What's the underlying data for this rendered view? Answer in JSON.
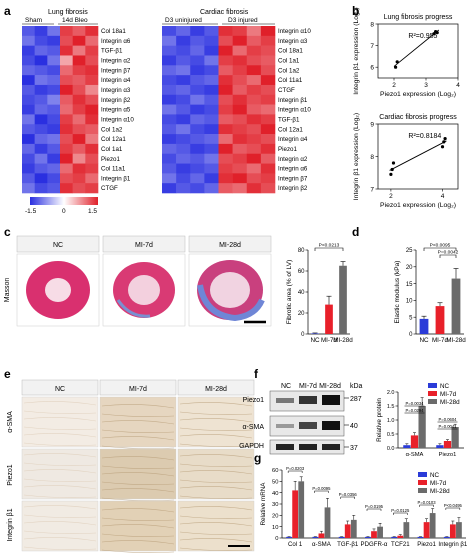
{
  "panel_labels": {
    "a": "a",
    "b": "b",
    "c": "c",
    "d": "d",
    "e": "e",
    "f": "f",
    "g": "g"
  },
  "heatmap_lung": {
    "title": "Lung fibrosis",
    "groups": [
      "Sham",
      "14d Bleo"
    ],
    "genes": [
      "Col 18a1",
      "Integrin α6",
      "TGF-β1",
      "Integrin α2",
      "Integrin β7",
      "Integrin α4",
      "Integrin α3",
      "Integrin β2",
      "Integrin α5",
      "Integrin α10",
      "Col 1a2",
      "Col 12a1",
      "Col 1a1",
      "Piezo1",
      "Col 11a1",
      "Integrin β1",
      "CTGF"
    ],
    "values": [
      [
        -1.2,
        -1.4,
        -1.0,
        1.3,
        1.1,
        1.4
      ],
      [
        -1.0,
        -1.3,
        -1.4,
        1.2,
        1.5,
        1.0
      ],
      [
        -1.4,
        -1.1,
        -1.2,
        1.4,
        0.9,
        1.3
      ],
      [
        -1.3,
        -1.5,
        -1.0,
        0.6,
        1.5,
        1.2
      ],
      [
        -1.1,
        -1.2,
        -1.3,
        1.0,
        1.3,
        1.4
      ],
      [
        -1.5,
        -1.0,
        -1.1,
        1.2,
        1.1,
        1.3
      ],
      [
        -1.2,
        -1.4,
        -1.3,
        1.5,
        1.2,
        0.8
      ],
      [
        -1.3,
        -1.2,
        -0.9,
        1.1,
        1.4,
        1.2
      ],
      [
        -1.4,
        -1.1,
        -1.2,
        1.0,
        1.3,
        1.5
      ],
      [
        -1.0,
        -1.5,
        -1.3,
        1.3,
        1.0,
        1.4
      ],
      [
        -1.2,
        -1.3,
        -1.4,
        1.4,
        1.2,
        1.1
      ],
      [
        -1.5,
        -1.1,
        -1.0,
        1.2,
        1.5,
        0.9
      ],
      [
        -1.1,
        -1.4,
        -1.2,
        1.3,
        1.1,
        1.4
      ],
      [
        -1.3,
        -1.0,
        -1.4,
        1.5,
        0.8,
        1.2
      ],
      [
        -1.4,
        -1.2,
        -1.1,
        1.0,
        1.4,
        1.3
      ],
      [
        -1.2,
        -1.5,
        -1.3,
        1.2,
        1.3,
        1.0
      ],
      [
        -1.0,
        -1.3,
        -1.2,
        1.4,
        1.2,
        1.3
      ]
    ],
    "legend_ticks": [
      "-1.5",
      "0",
      "1.5"
    ]
  },
  "heatmap_cardiac": {
    "title": "Cardiac fibrosis",
    "groups": [
      "D3 uninjured",
      "D3 injured"
    ],
    "genes": [
      "Integrin α10",
      "Integrin α3",
      "Col 18a1",
      "Col 1a1",
      "Col 1a2",
      "Col 11a1",
      "CTGF",
      "Integrin β1",
      "Integrin α10",
      "TGF-β1",
      "Col 12a1",
      "Integrin α4",
      "Piezo1",
      "Integrin α2",
      "Integrin α6",
      "Integrin β7",
      "Integrin β2"
    ],
    "values": [
      [
        -1.3,
        -1.1,
        -1.4,
        -1.2,
        1.4,
        1.3,
        0.9,
        1.5
      ],
      [
        -1.0,
        -1.4,
        -1.2,
        -1.3,
        1.2,
        1.5,
        1.1,
        1.3
      ],
      [
        -1.2,
        -1.3,
        -1.1,
        -1.4,
        1.5,
        1.0,
        1.3,
        1.2
      ],
      [
        -1.4,
        -1.2,
        -1.3,
        -1.0,
        1.3,
        1.4,
        1.2,
        1.1
      ],
      [
        -1.1,
        -1.0,
        -1.4,
        -1.3,
        1.1,
        1.3,
        1.5,
        1.2
      ],
      [
        -1.3,
        -1.4,
        -1.2,
        -1.1,
        1.4,
        1.2,
        1.0,
        1.5
      ],
      [
        -1.2,
        -1.1,
        -1.3,
        -1.4,
        1.5,
        1.1,
        1.3,
        1.2
      ],
      [
        -1.4,
        -1.3,
        -1.0,
        -1.2,
        1.2,
        1.4,
        1.2,
        1.3
      ],
      [
        -1.0,
        -1.2,
        -1.4,
        -1.3,
        1.3,
        1.5,
        1.1,
        1.0
      ],
      [
        -1.3,
        -1.4,
        -1.1,
        -1.2,
        1.1,
        1.2,
        1.4,
        1.3
      ],
      [
        -1.2,
        -1.0,
        -1.3,
        -1.4,
        1.4,
        1.3,
        1.2,
        1.5
      ],
      [
        -1.4,
        -1.3,
        -1.2,
        -1.1,
        1.0,
        1.4,
        1.3,
        1.2
      ],
      [
        -1.1,
        -1.2,
        -1.4,
        -1.3,
        1.5,
        1.1,
        1.2,
        1.4
      ],
      [
        -1.3,
        -1.1,
        -1.2,
        -1.0,
        1.2,
        1.3,
        1.5,
        1.1
      ],
      [
        -1.2,
        -1.4,
        -1.3,
        -1.2,
        1.3,
        1.2,
        1.0,
        1.4
      ],
      [
        -1.0,
        -1.3,
        -1.1,
        -1.4,
        1.4,
        1.5,
        1.2,
        1.3
      ],
      [
        -1.4,
        -1.2,
        -1.3,
        -1.1,
        1.1,
        1.0,
        1.4,
        1.2
      ]
    ]
  },
  "colors": {
    "low": "#2a2fe0",
    "mid": "#ffffff",
    "high": "#e0202a",
    "nc": "#2b3bd8",
    "mi7": "#e8202a",
    "mi28": "#6b6b6b"
  },
  "chart_data": [
    {
      "type": "scatter",
      "title": "Lung fibrosis progress",
      "xlabel": "Piezo1 expression (Log₂)",
      "ylabel": "Integrin β1 expression (Log₂)",
      "annotation": "R²=0.955",
      "x": [
        2.05,
        2.1,
        3.25,
        3.3,
        3.35
      ],
      "y": [
        6.0,
        6.25,
        7.55,
        7.65,
        7.6
      ],
      "xlim": [
        1.5,
        4
      ],
      "ylim": [
        5.5,
        8
      ],
      "xticks": [
        "2",
        "3",
        "4"
      ],
      "yticks": [
        "6",
        "7",
        "8"
      ],
      "fit_line": true
    },
    {
      "type": "scatter",
      "title": "Cardiac fibrosis progress",
      "xlabel": "Piezo1 expression (Log₂)",
      "ylabel": "Integrin β1 expression (Log₂)",
      "annotation": "R²=0.8184",
      "x": [
        2.0,
        2.05,
        2.1,
        4.0,
        4.05,
        4.1
      ],
      "y": [
        7.45,
        7.6,
        7.8,
        8.3,
        8.45,
        8.55
      ],
      "xlim": [
        1.5,
        4.6
      ],
      "ylim": [
        7,
        9
      ],
      "xticks": [
        "2",
        "4"
      ],
      "yticks": [
        "7",
        "8",
        "9"
      ],
      "fit_line": true
    },
    {
      "type": "bar",
      "categories": [
        "NC",
        "MI-7d",
        "MI-28d"
      ],
      "values": [
        0.5,
        28,
        65
      ],
      "errors": [
        0.5,
        8,
        4
      ],
      "ylabel": "Fibrotic area (% of LV)",
      "ylim": [
        0,
        80
      ],
      "yticks": [
        "0",
        "20",
        "40",
        "60",
        "80"
      ],
      "significance": "P<0.0213"
    },
    {
      "type": "bar",
      "categories": [
        "NC",
        "MI-7d",
        "MI-28d"
      ],
      "values": [
        4.5,
        8.3,
        16.5
      ],
      "errors": [
        0.8,
        1.0,
        3.0
      ],
      "ylabel": "Elastic modulus (kPa)",
      "ylim": [
        0,
        25
      ],
      "yticks": [
        "0",
        "5",
        "10",
        "15",
        "20",
        "25"
      ],
      "significance": [
        "P<0.0095",
        "P=0.0042"
      ]
    },
    {
      "type": "bar",
      "title": "",
      "categories": [
        "α-SMA",
        "Piezo1"
      ],
      "series": [
        {
          "name": "NC",
          "values": [
            0.1,
            0.1
          ],
          "errors": [
            0.05,
            0.05
          ]
        },
        {
          "name": "MI-7d",
          "values": [
            0.45,
            0.25
          ],
          "errors": [
            0.1,
            0.05
          ]
        },
        {
          "name": "MI-28d",
          "values": [
            1.5,
            0.75
          ],
          "errors": [
            0.3,
            0.1
          ]
        }
      ],
      "ylabel": "Relative protein",
      "ylim": [
        0,
        2.0
      ],
      "yticks": [
        "0.0",
        "0.5",
        "1.0",
        "1.5",
        "2.0"
      ],
      "significance": [
        "P=0.0034",
        "P=0.0294",
        "P=0.0604",
        "P=0.0041"
      ]
    },
    {
      "type": "bar",
      "categories": [
        "Col 1",
        "α-SMA",
        "TGF-β1",
        "PDGFR-α",
        "TCF21",
        "Piezo1",
        "Integrin β1"
      ],
      "series": [
        {
          "name": "NC",
          "values": [
            1,
            1,
            1,
            1,
            1,
            1,
            1
          ],
          "errors": [
            0.2,
            0.2,
            0.2,
            0.2,
            0.2,
            0.2,
            0.2
          ]
        },
        {
          "name": "MI-7d",
          "values": [
            42,
            4,
            12,
            6,
            2,
            14,
            12
          ],
          "errors": [
            8,
            2,
            3,
            2,
            1,
            3,
            3
          ]
        },
        {
          "name": "MI-28d",
          "values": [
            50,
            27,
            16,
            10,
            14,
            22,
            14
          ],
          "errors": [
            4,
            8,
            4,
            3,
            3,
            4,
            4
          ]
        }
      ],
      "ylabel": "Relative mRNA",
      "ylim": [
        0,
        60
      ],
      "yticks": [
        "0",
        "10",
        "20",
        "30",
        "40",
        "50",
        "60"
      ],
      "significance": [
        "P=0.0203",
        "P=0.0095",
        "P=0.0356",
        "P=0.0195",
        "P=0.0125",
        "P=0.0103",
        "P<0.0495"
      ]
    }
  ],
  "panel_c": {
    "labels": [
      "NC",
      "MI-7d",
      "MI-28d"
    ],
    "row": "Masson"
  },
  "panel_e": {
    "labels": [
      "NC",
      "MI-7d",
      "MI-28d"
    ],
    "rows": [
      "α-SMA",
      "Piezo1",
      "Integrin β1"
    ]
  },
  "panel_f": {
    "labels": [
      "NC",
      "MI-7d",
      "MI-28d"
    ],
    "rows": [
      "Piezo1",
      "α-SMA",
      "GAPDH"
    ],
    "kda_header": "kDa",
    "kda": [
      "287",
      "40",
      "37"
    ]
  }
}
